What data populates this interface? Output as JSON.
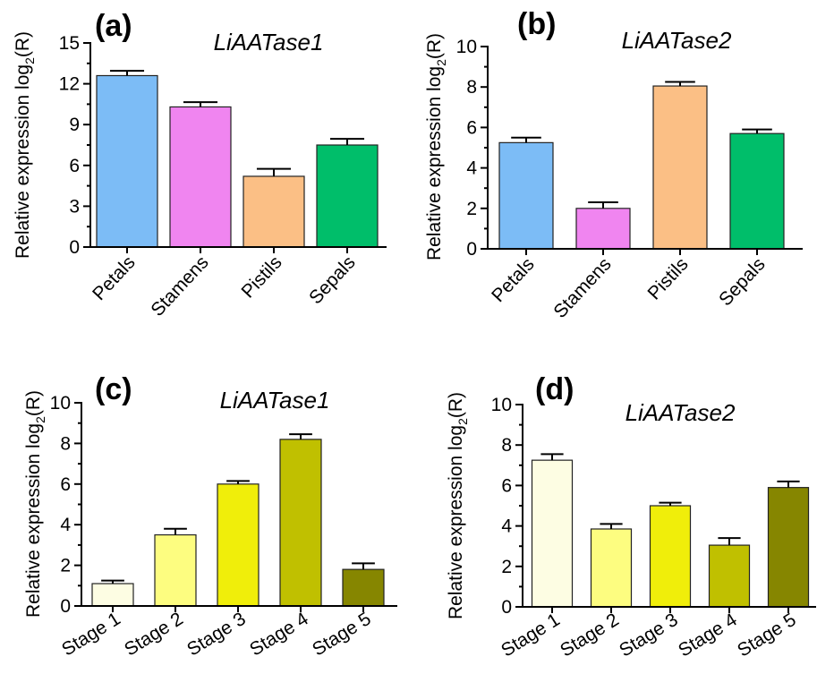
{
  "chart_data": [
    {
      "type": "bar",
      "panel": "(a)",
      "title": "LiAATase1",
      "ylabel": "Relative expression log₂(R)",
      "ylabel_main": "Relative expression log",
      "ylabel_sub": "2",
      "ylabel_tail": "(R)",
      "ylim": [
        0,
        15
      ],
      "yticks": [
        0,
        3,
        6,
        9,
        12,
        15
      ],
      "categories": [
        "Petals",
        "Stamens",
        "Pistils",
        "Sepals"
      ],
      "values": [
        12.6,
        10.3,
        5.2,
        7.5
      ],
      "errors": [
        0.35,
        0.35,
        0.55,
        0.45
      ],
      "colors": [
        "#7cbcf6",
        "#f085f0",
        "#fbbf85",
        "#00be6a"
      ]
    },
    {
      "type": "bar",
      "panel": "(b)",
      "title": "LiAATase2",
      "ylabel": "Relative expression log₂(R)",
      "ylabel_main": "Relative expression log",
      "ylabel_sub": "2",
      "ylabel_tail": "(R)",
      "ylim": [
        0,
        10
      ],
      "yticks": [
        0,
        2,
        4,
        6,
        8,
        10
      ],
      "categories": [
        "Petals",
        "Stamens",
        "Pistils",
        "Sepals"
      ],
      "values": [
        5.25,
        2.0,
        8.05,
        5.7
      ],
      "errors": [
        0.25,
        0.3,
        0.2,
        0.2
      ],
      "colors": [
        "#7cbcf6",
        "#f085f0",
        "#fbbf85",
        "#00be6a"
      ]
    },
    {
      "type": "bar",
      "panel": "(c)",
      "title": "LiAATase1",
      "ylabel": "Relative expression log₂(R)",
      "ylabel_main": "Relative expression log",
      "ylabel_sub": "2",
      "ylabel_tail": "(R)",
      "ylim": [
        0,
        10
      ],
      "yticks": [
        0,
        2,
        4,
        6,
        8,
        10
      ],
      "categories": [
        "Stage 1",
        "Stage 2",
        "Stage 3",
        "Stage 4",
        "Stage 5"
      ],
      "values": [
        1.1,
        3.5,
        6.0,
        8.2,
        1.8
      ],
      "errors": [
        0.15,
        0.3,
        0.15,
        0.25,
        0.3
      ],
      "colors": [
        "#fdfde3",
        "#fdfd80",
        "#f0ee0a",
        "#c0c000",
        "#868600"
      ]
    },
    {
      "type": "bar",
      "panel": "(d)",
      "title": "LiAATase2",
      "ylabel": "Relative expression log₂(R)",
      "ylabel_main": "Relative expression log",
      "ylabel_sub": "2",
      "ylabel_tail": "(R)",
      "ylim": [
        0,
        10
      ],
      "yticks": [
        0,
        2,
        4,
        6,
        8,
        10
      ],
      "categories": [
        "Stage 1",
        "Stage 2",
        "Stage 3",
        "Stage 4",
        "Stage 5"
      ],
      "values": [
        7.25,
        3.85,
        5.0,
        3.05,
        5.9
      ],
      "errors": [
        0.3,
        0.25,
        0.15,
        0.35,
        0.3
      ],
      "colors": [
        "#fdfde3",
        "#fdfd80",
        "#f0ee0a",
        "#c0c000",
        "#868600"
      ]
    }
  ]
}
